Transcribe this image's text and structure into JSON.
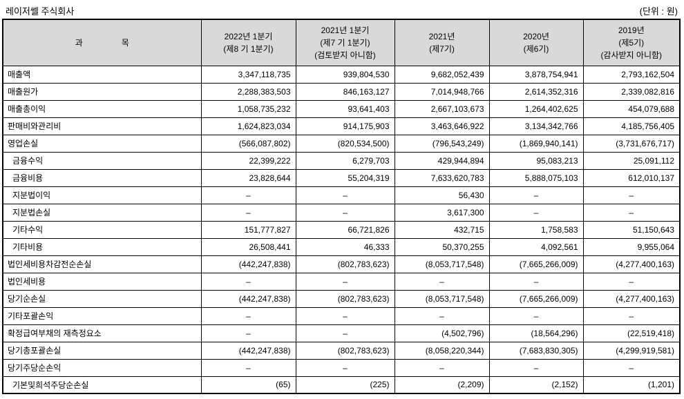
{
  "page": {
    "company": "레이저쎌 주식회사",
    "unit_note": "(단위 : 원)"
  },
  "table": {
    "header": {
      "item_col": {
        "left": "과",
        "right": "목"
      },
      "period_cols": [
        {
          "lines": [
            "2022년 1분기",
            "(제8 기 1분기)"
          ]
        },
        {
          "lines": [
            "2021년 1분기",
            "(제7 기 1분기)",
            "(검토받지 아니함)"
          ]
        },
        {
          "lines": [
            "2021년",
            "(제7기)"
          ]
        },
        {
          "lines": [
            "2020년",
            "(제6기)"
          ]
        },
        {
          "lines": [
            "2019년",
            "(제5기)",
            "(감사받지 아니함)"
          ]
        }
      ]
    },
    "rows": [
      {
        "label": "매출액",
        "indent": false,
        "values": [
          "3,347,118,735",
          "939,804,530",
          "9,682,052,439",
          "3,878,754,941",
          "2,793,162,504"
        ]
      },
      {
        "label": "매출원가",
        "indent": false,
        "values": [
          "2,288,383,503",
          "846,163,127",
          "7,014,948,766",
          "2,614,352,316",
          "2,339,082,816"
        ]
      },
      {
        "label": "매출총이익",
        "indent": false,
        "values": [
          "1,058,735,232",
          "93,641,403",
          "2,667,103,673",
          "1,264,402,625",
          "454,079,688"
        ]
      },
      {
        "label": "판매비와관리비",
        "indent": false,
        "values": [
          "1,624,823,034",
          "914,175,903",
          "3,463,646,922",
          "3,134,342,766",
          "4,185,756,405"
        ]
      },
      {
        "label": "영업손실",
        "indent": false,
        "values": [
          "(566,087,802)",
          "(820,534,500)",
          "(796,543,249)",
          "(1,869,940,141)",
          "(3,731,676,717)"
        ]
      },
      {
        "label": "금융수익",
        "indent": true,
        "values": [
          "22,399,222",
          "6,279,703",
          "429,944,894",
          "95,083,213",
          "25,091,112"
        ]
      },
      {
        "label": "금융비용",
        "indent": true,
        "values": [
          "23,828,644",
          "55,204,319",
          "7,633,620,783",
          "5,888,075,103",
          "612,010,137"
        ]
      },
      {
        "label": "지분법이익",
        "indent": true,
        "values": [
          "–",
          "–",
          "56,430",
          "–",
          "–"
        ]
      },
      {
        "label": "지분법손실",
        "indent": true,
        "values": [
          "–",
          "–",
          "3,617,300",
          "–",
          "–"
        ]
      },
      {
        "label": "기타수익",
        "indent": true,
        "values": [
          "151,777,827",
          "66,721,826",
          "432,715",
          "1,758,583",
          "51,150,643"
        ]
      },
      {
        "label": "기타비용",
        "indent": true,
        "values": [
          "26,508,441",
          "46,333",
          "50,370,255",
          "4,092,561",
          "9,955,064"
        ]
      },
      {
        "label": "법인세비용차감전순손실",
        "indent": false,
        "values": [
          "(442,247,838)",
          "(802,783,623)",
          "(8,053,717,548)",
          "(7,665,266,009)",
          "(4,277,400,163)"
        ]
      },
      {
        "label": "법인세비용",
        "indent": false,
        "values": [
          "–",
          "–",
          "–",
          "–",
          "–"
        ]
      },
      {
        "label": "당기순손실",
        "indent": false,
        "values": [
          "(442,247,838)",
          "(802,783,623)",
          "(8,053,717,548)",
          "(7,665,266,009)",
          "(4,277,400,163)"
        ]
      },
      {
        "label": "기타포괄손익",
        "indent": false,
        "values": [
          "–",
          "–",
          "–",
          "–",
          "–"
        ]
      },
      {
        "label": "확정급여부채의 재측정요소",
        "indent": false,
        "values": [
          "–",
          "–",
          "(4,502,796)",
          "(18,564,296)",
          "(22,519,418)"
        ]
      },
      {
        "label": "당기총포괄손실",
        "indent": false,
        "values": [
          "(442,247,838)",
          "(802,783,623)",
          "(8,058,220,344)",
          "(7,683,830,305)",
          "(4,299,919,581)"
        ]
      },
      {
        "label": "당기주당순손익",
        "indent": false,
        "values": [
          "–",
          "–",
          "–",
          "–",
          "–"
        ]
      },
      {
        "label": "기본및희석주당순손실",
        "indent": true,
        "values": [
          "(65)",
          "(225)",
          "(2,209)",
          "(2,152)",
          "(1,201)"
        ]
      }
    ]
  }
}
